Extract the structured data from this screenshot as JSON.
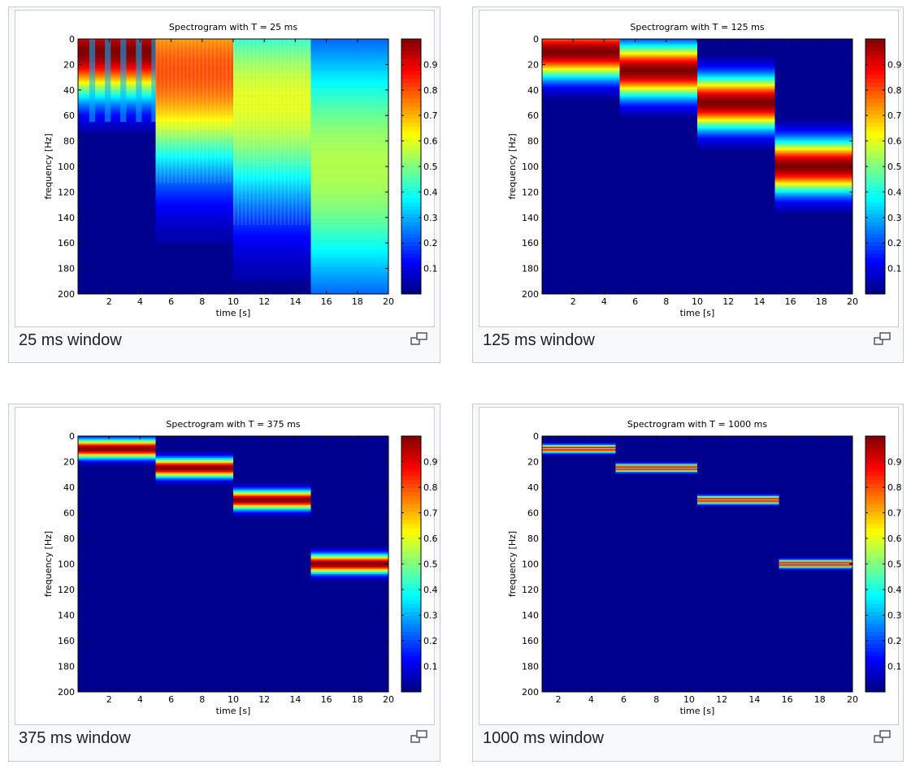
{
  "colors": {
    "jet": [
      "#00008f",
      "#0000ff",
      "#00ffff",
      "#ffff00",
      "#ff0000",
      "#800000"
    ],
    "background": "#00008f"
  },
  "figures": [
    {
      "caption": "25 ms window",
      "icon": "magnify-icon",
      "chart_data": {
        "type": "heatmap",
        "title": "Spectrogram with T = 25 ms",
        "xlabel": "time [s]",
        "ylabel": "frequency [Hz]",
        "xlim": [
          0,
          20
        ],
        "ylim": [
          0,
          200
        ],
        "y_direction": "top-to-bottom",
        "xticks": [
          "2",
          "4",
          "6",
          "8",
          "10",
          "12",
          "14",
          "16",
          "18",
          "20"
        ],
        "yticks": [
          "0",
          "20",
          "40",
          "60",
          "80",
          "100",
          "120",
          "140",
          "160",
          "180",
          "200"
        ],
        "colorbar": {
          "range": [
            0,
            1
          ],
          "ticks": [
            "0.1",
            "0.2",
            "0.3",
            "0.4",
            "0.5",
            "0.6",
            "0.7",
            "0.8",
            "0.9"
          ]
        },
        "segments": [
          {
            "t0": 0,
            "t1": 5,
            "freq": 10,
            "peak": 1.0,
            "spread": 25,
            "pattern": "oscillating"
          },
          {
            "t0": 5,
            "t1": 10,
            "freq": 25,
            "peak": 0.8,
            "spread": 55,
            "pattern": "striped"
          },
          {
            "t0": 10,
            "t1": 15,
            "freq": 50,
            "peak": 0.6,
            "spread": 60,
            "pattern": "striped"
          },
          {
            "t0": 15,
            "t1": 20,
            "freq": 100,
            "peak": 0.55,
            "spread": 75,
            "pattern": "smooth"
          }
        ]
      }
    },
    {
      "caption": "125 ms window",
      "icon": "magnify-icon",
      "chart_data": {
        "type": "heatmap",
        "title": "Spectrogram with T = 125 ms",
        "xlabel": "time [s]",
        "ylabel": "frequency [Hz]",
        "xlim": [
          0,
          20
        ],
        "ylim": [
          0,
          200
        ],
        "y_direction": "top-to-bottom",
        "xticks": [
          "2",
          "4",
          "6",
          "8",
          "10",
          "12",
          "14",
          "16",
          "18",
          "20"
        ],
        "yticks": [
          "0",
          "20",
          "40",
          "60",
          "80",
          "100",
          "120",
          "140",
          "160",
          "180",
          "200"
        ],
        "colorbar": {
          "range": [
            0,
            1
          ],
          "ticks": [
            "0.1",
            "0.2",
            "0.3",
            "0.4",
            "0.5",
            "0.6",
            "0.7",
            "0.8",
            "0.9"
          ]
        },
        "segments": [
          {
            "t0": 0,
            "t1": 5,
            "freq": 10,
            "peak": 1.0,
            "spread": 14,
            "pattern": "smooth"
          },
          {
            "t0": 5,
            "t1": 10,
            "freq": 25,
            "peak": 1.0,
            "spread": 14,
            "pattern": "smooth"
          },
          {
            "t0": 10,
            "t1": 15,
            "freq": 50,
            "peak": 1.0,
            "spread": 14,
            "pattern": "smooth"
          },
          {
            "t0": 15,
            "t1": 20,
            "freq": 100,
            "peak": 1.0,
            "spread": 14,
            "pattern": "smooth"
          }
        ]
      }
    },
    {
      "caption": "375 ms window",
      "icon": "magnify-icon",
      "chart_data": {
        "type": "heatmap",
        "title": "Spectrogram with T = 375 ms",
        "xlabel": "time [s]",
        "ylabel": "frequency [Hz]",
        "xlim": [
          0,
          20
        ],
        "ylim": [
          0,
          200
        ],
        "y_direction": "top-to-bottom",
        "xticks": [
          "2",
          "4",
          "6",
          "8",
          "10",
          "12",
          "14",
          "16",
          "18",
          "20"
        ],
        "yticks": [
          "0",
          "20",
          "40",
          "60",
          "80",
          "100",
          "120",
          "140",
          "160",
          "180",
          "200"
        ],
        "colorbar": {
          "range": [
            0,
            1
          ],
          "ticks": [
            "0.1",
            "0.2",
            "0.3",
            "0.4",
            "0.5",
            "0.6",
            "0.7",
            "0.8",
            "0.9"
          ]
        },
        "segments": [
          {
            "t0": 0,
            "t1": 5,
            "freq": 10,
            "peak": 1.0,
            "spread": 5,
            "pattern": "smooth"
          },
          {
            "t0": 5,
            "t1": 10,
            "freq": 25,
            "peak": 1.0,
            "spread": 5,
            "pattern": "smooth"
          },
          {
            "t0": 10,
            "t1": 15,
            "freq": 50,
            "peak": 1.0,
            "spread": 5,
            "pattern": "smooth"
          },
          {
            "t0": 15,
            "t1": 20,
            "freq": 100,
            "peak": 1.0,
            "spread": 5,
            "pattern": "smooth"
          }
        ]
      }
    },
    {
      "caption": "1000 ms window",
      "icon": "magnify-icon",
      "chart_data": {
        "type": "heatmap",
        "title": "Spectrogram with T = 1000 ms",
        "xlabel": "time [s]",
        "ylabel": "frequency [Hz]",
        "xlim": [
          1,
          20
        ],
        "ylim": [
          0,
          200
        ],
        "y_direction": "top-to-bottom",
        "xticks": [
          "2",
          "4",
          "6",
          "8",
          "10",
          "12",
          "14",
          "16",
          "18",
          "20"
        ],
        "yticks": [
          "0",
          "20",
          "40",
          "60",
          "80",
          "100",
          "120",
          "140",
          "160",
          "180",
          "200"
        ],
        "colorbar": {
          "range": [
            0,
            1
          ],
          "ticks": [
            "0.1",
            "0.2",
            "0.3",
            "0.4",
            "0.5",
            "0.6",
            "0.7",
            "0.8",
            "0.9"
          ]
        },
        "segments": [
          {
            "t0": 1,
            "t1": 5.5,
            "freq": 10,
            "peak": 1.0,
            "spread": 2,
            "pattern": "thin"
          },
          {
            "t0": 5.5,
            "t1": 10.5,
            "freq": 25,
            "peak": 1.0,
            "spread": 2,
            "pattern": "thin"
          },
          {
            "t0": 10.5,
            "t1": 15.5,
            "freq": 50,
            "peak": 1.0,
            "spread": 2,
            "pattern": "thin"
          },
          {
            "t0": 15.5,
            "t1": 20,
            "freq": 100,
            "peak": 1.0,
            "spread": 2,
            "pattern": "thin"
          }
        ]
      }
    }
  ]
}
